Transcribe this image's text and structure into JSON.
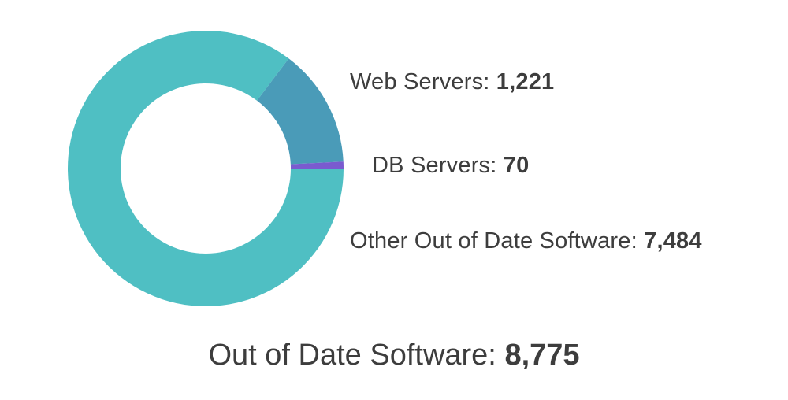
{
  "chart_data": {
    "type": "pie",
    "style": "donut",
    "slices": [
      {
        "name": "Web Servers",
        "label": "Web Servers: ",
        "value": 1221,
        "display": "1,221",
        "color": "#4a9bb8"
      },
      {
        "name": "DB Servers",
        "label": "DB Servers: ",
        "value": 70,
        "display": "70",
        "color": "#7a5bcf"
      },
      {
        "name": "Other Out of Date Software",
        "label": "Other Out of Date Software: ",
        "value": 7484,
        "display": "7,484",
        "color": "#4fbfc3"
      }
    ],
    "total": {
      "label": "Out of Date Software: ",
      "value": 8775,
      "display": "8,775"
    }
  }
}
